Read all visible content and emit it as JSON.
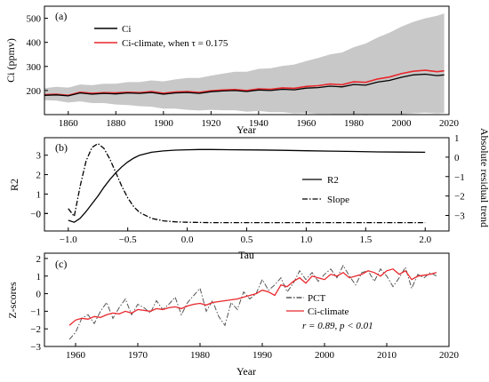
{
  "chart_data": [
    {
      "type": "area",
      "panel": "(a)",
      "ylabel": "Ci (ppmv)",
      "xlabel": "Year",
      "xlim": [
        1850,
        2020
      ],
      "ylim": [
        100,
        550
      ],
      "xticks": [
        "1860",
        "1880",
        "1900",
        "1920",
        "1940",
        "1960",
        "1980",
        "2000",
        "2020"
      ],
      "yticks": [
        "200",
        "300",
        "400",
        "500"
      ],
      "legend": {
        "position": "top-left",
        "entries": [
          "Ci",
          "Ci-climate, when τ = 0.175"
        ]
      },
      "colors": {
        "ci": "#000000",
        "ci_climate": "#e8262b",
        "band": "#c8c8c8"
      },
      "x": [
        1850,
        1855,
        1860,
        1865,
        1870,
        1875,
        1880,
        1885,
        1890,
        1895,
        1900,
        1905,
        1910,
        1915,
        1920,
        1925,
        1930,
        1935,
        1940,
        1945,
        1950,
        1955,
        1960,
        1965,
        1970,
        1975,
        1980,
        1985,
        1990,
        1995,
        2000,
        2005,
        2010,
        2015,
        2018
      ],
      "series": [
        {
          "name": "Ci",
          "values": [
            180,
            182,
            178,
            190,
            185,
            188,
            186,
            190,
            188,
            192,
            185,
            190,
            192,
            188,
            195,
            198,
            200,
            196,
            202,
            200,
            205,
            203,
            210,
            212,
            218,
            215,
            225,
            222,
            235,
            242,
            255,
            265,
            268,
            262,
            265
          ]
        },
        {
          "name": "Ci-climate, when τ = 0.175",
          "values": [
            183,
            185,
            180,
            193,
            188,
            191,
            190,
            193,
            191,
            196,
            189,
            194,
            196,
            192,
            199,
            202,
            204,
            200,
            207,
            205,
            211,
            209,
            217,
            220,
            227,
            224,
            236,
            234,
            248,
            256,
            270,
            280,
            284,
            278,
            282
          ]
        },
        {
          "name": "band-upper",
          "values": [
            210,
            215,
            212,
            225,
            222,
            228,
            228,
            235,
            235,
            242,
            238,
            246,
            252,
            252,
            262,
            270,
            278,
            278,
            290,
            292,
            302,
            308,
            322,
            335,
            350,
            358,
            380,
            395,
            420,
            440,
            465,
            485,
            500,
            510,
            520
          ]
        },
        {
          "name": "band-lower",
          "values": [
            160,
            158,
            150,
            155,
            148,
            148,
            142,
            140,
            135,
            133,
            125,
            125,
            120,
            117,
            120,
            118,
            118,
            112,
            115,
            110,
            110,
            105,
            107,
            103,
            103,
            98,
            100,
            97,
            100,
            100,
            102,
            105,
            108,
            105,
            107
          ]
        }
      ]
    },
    {
      "type": "line",
      "panel": "(b)",
      "xlabel": "Tau",
      "ylabel": "R2",
      "y2label": "Absolute residual trend",
      "xlim": [
        -1.2,
        2.2
      ],
      "ylim": [
        -0.9,
        3.9
      ],
      "y2lim": [
        -3.8,
        1
      ],
      "xticks": [
        "−1.0",
        "−0.5",
        "0.0",
        "0.5",
        "1.0",
        "1.5",
        "2.0"
      ],
      "yticks": [
        "−0",
        "0",
        "1",
        "2",
        "3"
      ],
      "y2ticks": [
        "−3",
        "−2",
        "−1",
        "0",
        "1"
      ],
      "legend": {
        "position": "right",
        "entries": [
          "R2",
          "Slope"
        ]
      },
      "x": [
        -1.0,
        -0.95,
        -0.9,
        -0.85,
        -0.8,
        -0.75,
        -0.7,
        -0.65,
        -0.6,
        -0.55,
        -0.5,
        -0.45,
        -0.4,
        -0.3,
        -0.2,
        -0.1,
        0.0,
        0.1,
        0.2,
        0.4,
        0.6,
        0.8,
        1.0,
        1.2,
        1.4,
        1.6,
        1.8,
        2.0
      ],
      "series": [
        {
          "name": "R2",
          "axis": "left",
          "values": [
            -0.35,
            -0.45,
            -0.25,
            0.1,
            0.5,
            0.9,
            1.35,
            1.75,
            2.1,
            2.4,
            2.65,
            2.85,
            3.0,
            3.15,
            3.22,
            3.26,
            3.28,
            3.29,
            3.29,
            3.28,
            3.27,
            3.25,
            3.23,
            3.21,
            3.19,
            3.17,
            3.16,
            3.15
          ]
        },
        {
          "name": "Slope",
          "axis": "right",
          "values": [
            -2.65,
            -3.05,
            -1.5,
            -0.2,
            0.5,
            0.7,
            0.45,
            -0.1,
            -0.8,
            -1.5,
            -2.1,
            -2.55,
            -2.85,
            -3.15,
            -3.28,
            -3.33,
            -3.35,
            -3.36,
            -3.37,
            -3.37,
            -3.37,
            -3.37,
            -3.37,
            -3.37,
            -3.37,
            -3.37,
            -3.37,
            -3.37
          ]
        }
      ]
    },
    {
      "type": "line",
      "panel": "(c)",
      "xlabel": "Year",
      "ylabel": "Z-scores",
      "xlim": [
        1955,
        2020
      ],
      "ylim": [
        -3,
        2.3
      ],
      "xticks": [
        "1960",
        "1970",
        "1980",
        "1990",
        "2000",
        "2010",
        "2020"
      ],
      "yticks": [
        "−3",
        "−2",
        "−1",
        "0",
        "1",
        "2"
      ],
      "annotation": "r = 0.89, p < 0.01",
      "legend": {
        "position": "lower-right",
        "entries": [
          "PCT",
          "Ci-climate"
        ]
      },
      "x": [
        1959,
        1960,
        1961,
        1962,
        1963,
        1964,
        1965,
        1966,
        1967,
        1968,
        1969,
        1970,
        1971,
        1972,
        1973,
        1974,
        1975,
        1976,
        1977,
        1978,
        1979,
        1980,
        1981,
        1982,
        1983,
        1984,
        1985,
        1986,
        1987,
        1988,
        1989,
        1990,
        1991,
        1992,
        1993,
        1994,
        1995,
        1996,
        1997,
        1998,
        1999,
        2000,
        2001,
        2002,
        2003,
        2004,
        2005,
        2006,
        2007,
        2008,
        2009,
        2010,
        2011,
        2012,
        2013,
        2014,
        2015,
        2016,
        2017,
        2018
      ],
      "series": [
        {
          "name": "PCT",
          "values": [
            -2.6,
            -2.2,
            -1.4,
            -1.2,
            -1.7,
            -1.0,
            -0.5,
            -1.4,
            -0.8,
            -0.3,
            -1.2,
            -0.6,
            -0.8,
            -1.1,
            -0.4,
            -0.9,
            -0.6,
            -0.2,
            -1.2,
            -0.5,
            -0.1,
            0.3,
            -1.0,
            -0.4,
            -1.3,
            -1.8,
            -0.5,
            -0.9,
            0.1,
            -0.3,
            0.0,
            0.8,
            0.2,
            0.5,
            0.9,
            0.1,
            0.6,
            1.3,
            0.8,
            1.2,
            0.7,
            1.1,
            1.4,
            0.9,
            1.6,
            1.0,
            0.5,
            1.2,
            1.3,
            0.7,
            1.4,
            1.0,
            0.4,
            0.9,
            1.5,
            0.3,
            1.1,
            0.9,
            1.2,
            1.0
          ]
        },
        {
          "name": "Ci-climate",
          "values": [
            -1.8,
            -1.5,
            -1.4,
            -1.45,
            -1.3,
            -1.35,
            -1.2,
            -1.1,
            -1.15,
            -1.0,
            -1.1,
            -0.9,
            -0.95,
            -1.0,
            -0.85,
            -0.9,
            -0.8,
            -0.75,
            -0.85,
            -0.7,
            -0.6,
            -0.55,
            -0.65,
            -0.5,
            -0.45,
            -0.4,
            -0.35,
            -0.3,
            -0.2,
            -0.1,
            0.0,
            0.2,
            0.1,
            -0.1,
            0.5,
            0.4,
            0.7,
            0.9,
            0.6,
            1.0,
            0.9,
            0.8,
            1.1,
            1.0,
            1.2,
            0.9,
            1.0,
            1.1,
            1.3,
            1.2,
            1.0,
            1.3,
            1.4,
            1.1,
            1.3,
            0.8,
            1.0,
            1.05,
            1.1,
            1.2
          ]
        }
      ]
    }
  ]
}
